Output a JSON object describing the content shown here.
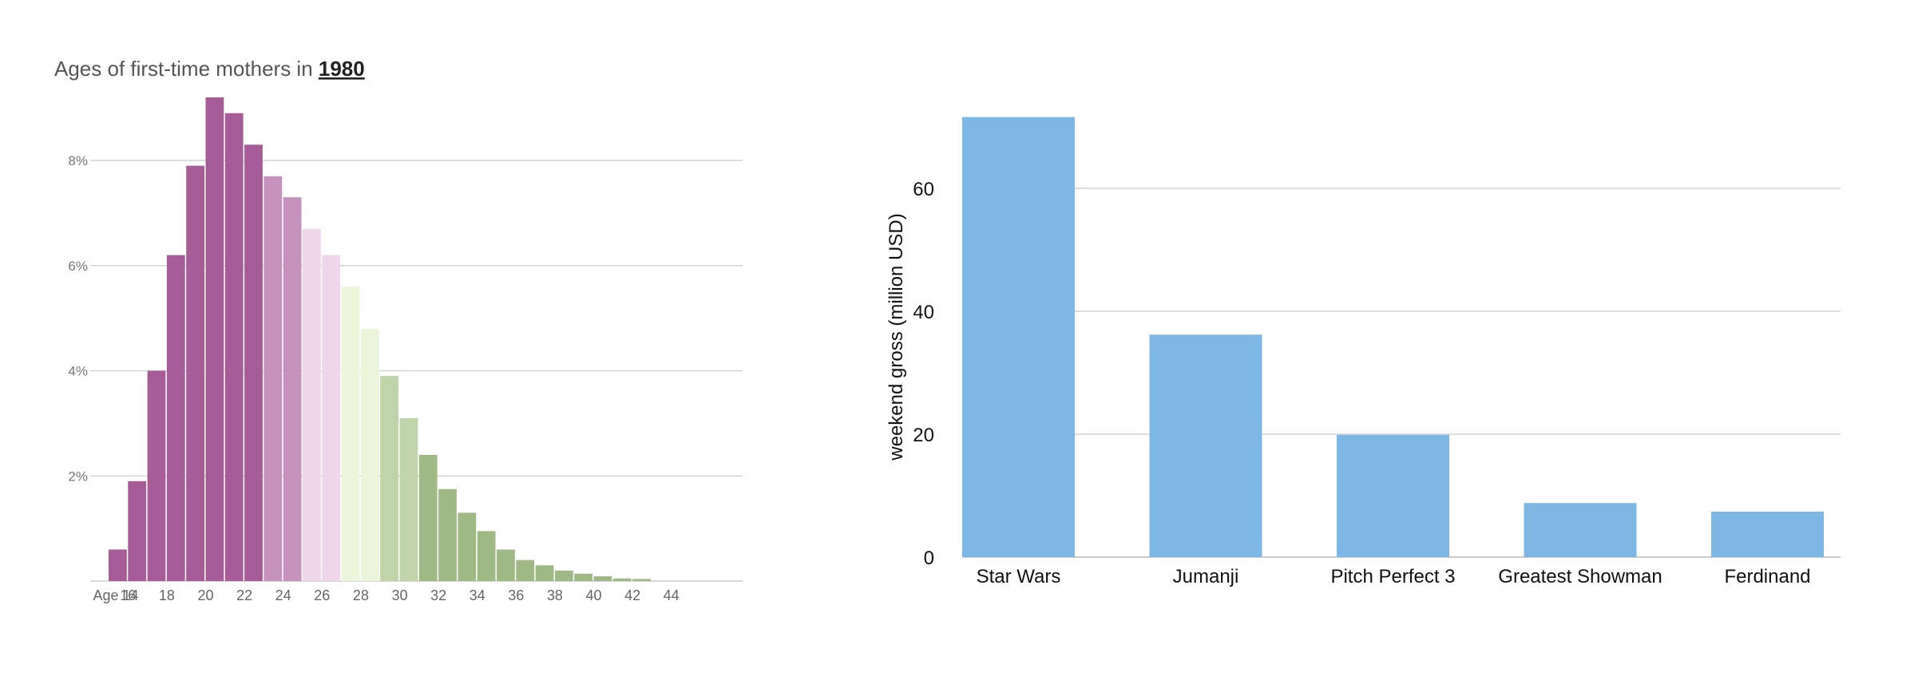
{
  "chart_data": [
    {
      "type": "bar",
      "title_prefix": "Ages of first-time mothers in",
      "title_year": "1980",
      "xlabel": "",
      "ylabel": "",
      "x_tick_labels": [
        "Age 14",
        "16",
        "18",
        "20",
        "22",
        "24",
        "26",
        "28",
        "30",
        "32",
        "34",
        "36",
        "38",
        "40",
        "42",
        "44"
      ],
      "y_tick_labels": [
        "2%",
        "4%",
        "6%",
        "8%"
      ],
      "y_ticks": [
        2,
        4,
        6,
        8
      ],
      "ylim": [
        0,
        9.2
      ],
      "grid": true,
      "categories": [
        15,
        16,
        17,
        18,
        19,
        20,
        21,
        22,
        23,
        24,
        25,
        26,
        27,
        28,
        29,
        30,
        31,
        32,
        33,
        34,
        35,
        36,
        37,
        38,
        39,
        40,
        41,
        42
      ],
      "values": [
        0.6,
        1.9,
        4.0,
        6.2,
        7.9,
        9.2,
        8.9,
        8.3,
        7.7,
        7.3,
        6.7,
        6.2,
        5.6,
        4.8,
        3.9,
        3.1,
        2.4,
        1.75,
        1.3,
        0.95,
        0.6,
        0.4,
        0.3,
        0.2,
        0.14,
        0.09,
        0.05,
        0.04
      ],
      "colors": [
        "#a65c96",
        "#a65c96",
        "#a65c96",
        "#a65c96",
        "#a65c96",
        "#a65c96",
        "#a65c96",
        "#a65c96",
        "#c592bd",
        "#c592bd",
        "#efd6ea",
        "#efd6ea",
        "#eaf5d9",
        "#eaf5d9",
        "#bfd4a8",
        "#bfd4a8",
        "#9fb986",
        "#9fb986",
        "#9fb986",
        "#9fb986",
        "#9fb986",
        "#9fb986",
        "#9fb986",
        "#9fb986",
        "#9fb986",
        "#9fb986",
        "#9fb986",
        "#9fb986"
      ]
    },
    {
      "type": "bar",
      "title": "",
      "xlabel": "",
      "ylabel": "weekend gross (million USD)",
      "categories": [
        "Star Wars",
        "Jumanji",
        "Pitch Perfect 3",
        "Greatest Showman",
        "Ferdinand"
      ],
      "values": [
        71.6,
        36.2,
        19.9,
        8.8,
        7.4
      ],
      "y_ticks": [
        0,
        20,
        40,
        60
      ],
      "ylim": [
        0,
        72
      ],
      "grid": true,
      "bar_color": "#7db8e5"
    }
  ]
}
